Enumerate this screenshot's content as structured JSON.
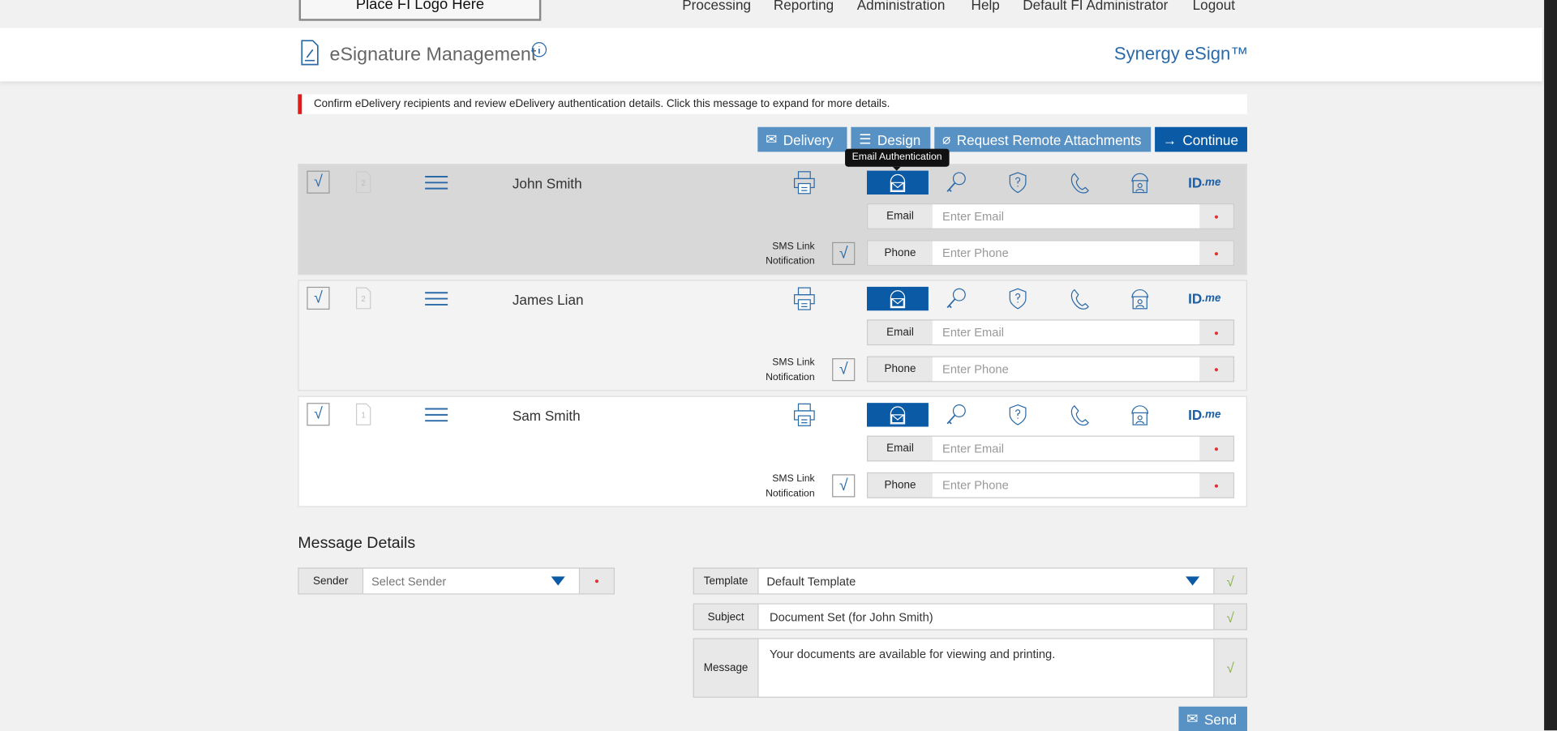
{
  "topnav": {
    "logo": "Place FI Logo Here",
    "items": [
      "Processing",
      "Reporting",
      "Administration",
      "Help",
      "Default FI Administrator",
      "Logout"
    ]
  },
  "header": {
    "title": "eSignature Management",
    "brand": "Synergy eSign™"
  },
  "alert": {
    "text": "Confirm eDelivery recipients and review eDelivery authentication details. Click this message to expand for more details.",
    "color": "#e21a1a"
  },
  "toolbar": {
    "delivery": "Delivery",
    "design": "Design",
    "remote": "Request Remote Attachments",
    "continue": "Continue"
  },
  "tooltip": "Email Authentication",
  "recipients": [
    {
      "name": "John Smith",
      "doc_count": "2",
      "selected": true,
      "checked": true,
      "sms_checked": true,
      "active_auth": "email",
      "email_label": "Email",
      "email_placeholder": "Enter Email",
      "phone_label": "Phone",
      "phone_placeholder": "Enter Phone",
      "sms_label_1": "SMS Link",
      "sms_label_2": "Notification"
    },
    {
      "name": "James Lian",
      "doc_count": "2",
      "selected": false,
      "checked": true,
      "sms_checked": true,
      "active_auth": "email",
      "email_label": "Email",
      "email_placeholder": "Enter Email",
      "phone_label": "Phone",
      "phone_placeholder": "Enter Phone",
      "sms_label_1": "SMS Link",
      "sms_label_2": "Notification"
    },
    {
      "name": "Sam Smith",
      "doc_count": "1",
      "selected": false,
      "checked": true,
      "sms_checked": true,
      "active_auth": "email",
      "email_label": "Email",
      "email_placeholder": "Enter Email",
      "phone_label": "Phone",
      "phone_placeholder": "Enter Phone",
      "sms_label_1": "SMS Link",
      "sms_label_2": "Notification"
    }
  ],
  "auth_icons": [
    "printer-icon",
    "email-auth-icon",
    "key-icon",
    "shield-question-icon",
    "phone-icon",
    "person-id-icon",
    "idme-logo"
  ],
  "idme": {
    "a": "ID",
    "b": ".me"
  },
  "message": {
    "heading": "Message Details",
    "sender_label": "Sender",
    "sender_placeholder": "Select Sender",
    "template_label": "Template",
    "template_value": "Default Template",
    "subject_label": "Subject",
    "subject_value": "Document Set (for John Smith)",
    "message_label": "Message",
    "message_value": "Your documents are available for viewing and printing.",
    "send": "Send"
  },
  "colors": {
    "accent": "#0a5aa6",
    "button": "#5892c4",
    "brand": "#2a6aa8"
  }
}
